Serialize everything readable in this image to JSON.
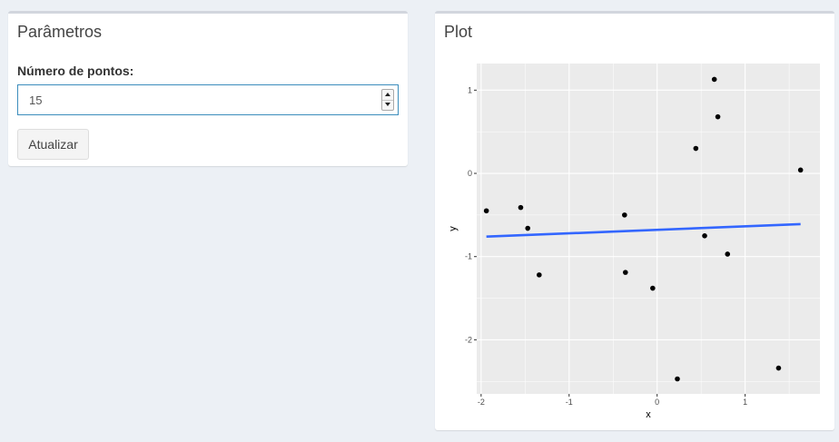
{
  "params_box": {
    "title": "Parâmetros",
    "field_label": "Número de pontos:",
    "field_value": "15",
    "button_label": "Atualizar"
  },
  "plot_box": {
    "title": "Plot"
  },
  "colors": {
    "panel_background": "#ebebeb",
    "grid": "#ffffff",
    "points": "#000000",
    "fit_line": "#3366ff",
    "input_focus_border": "#3c8dbc",
    "page_background": "#ecf0f5"
  },
  "chart_data": {
    "type": "scatter",
    "xlabel": "x",
    "ylabel": "y",
    "xlim": [
      -2.05,
      1.85
    ],
    "ylim": [
      -2.65,
      1.32
    ],
    "x_ticks": [
      -2,
      -1,
      0,
      1
    ],
    "y_ticks": [
      -2,
      -1,
      0,
      1
    ],
    "grid": true,
    "points": [
      {
        "x": -1.94,
        "y": -0.45
      },
      {
        "x": -1.55,
        "y": -0.41
      },
      {
        "x": -1.47,
        "y": -0.66
      },
      {
        "x": -1.34,
        "y": -1.22
      },
      {
        "x": -0.37,
        "y": -0.5
      },
      {
        "x": -0.36,
        "y": -1.19
      },
      {
        "x": -0.05,
        "y": -1.38
      },
      {
        "x": 0.23,
        "y": -2.47
      },
      {
        "x": 0.44,
        "y": 0.3
      },
      {
        "x": 0.54,
        "y": -0.75
      },
      {
        "x": 0.65,
        "y": 1.13
      },
      {
        "x": 0.69,
        "y": 0.68
      },
      {
        "x": 0.8,
        "y": -0.97
      },
      {
        "x": 1.38,
        "y": -2.34
      },
      {
        "x": 1.63,
        "y": 0.04
      }
    ],
    "fit_line": {
      "x": [
        -1.94,
        1.63
      ],
      "y": [
        -0.76,
        -0.61
      ]
    }
  }
}
